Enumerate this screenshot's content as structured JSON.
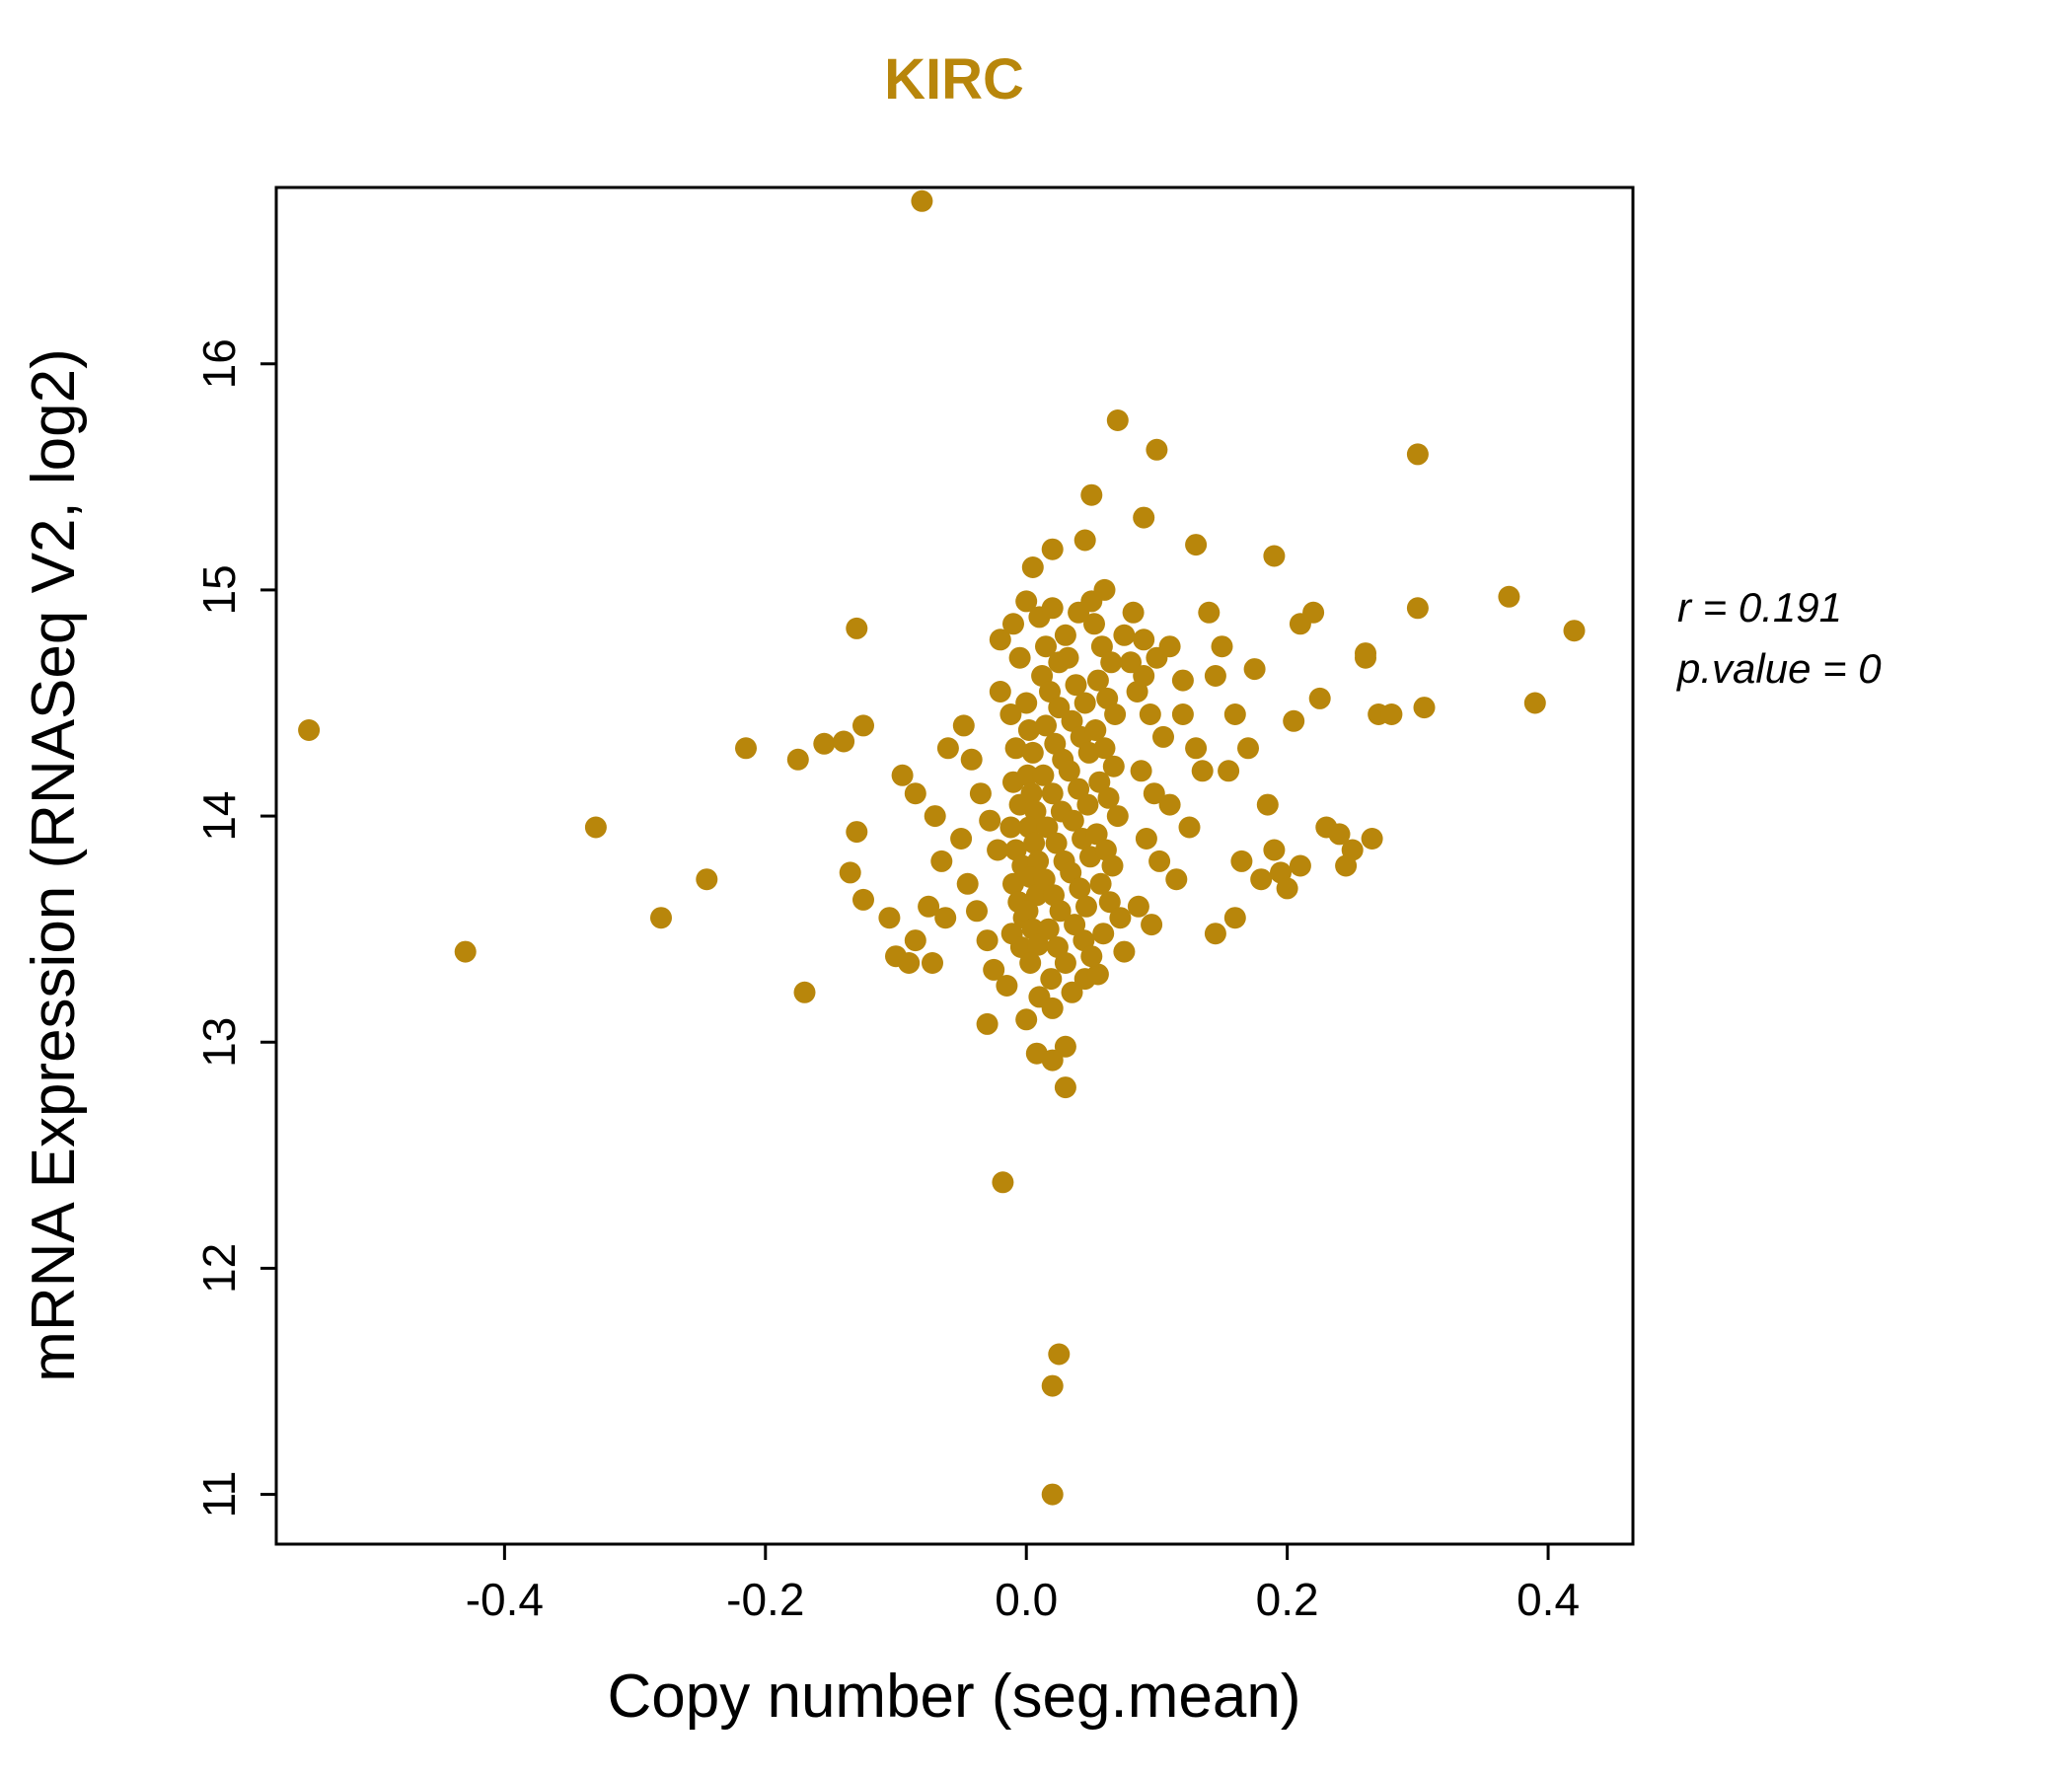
{
  "title": "KIRC",
  "annotation": {
    "line1": "r = 0.191",
    "line2": "p.value = 0"
  },
  "chart_data": {
    "type": "scatter",
    "title": "KIRC",
    "xlabel": "Copy number (seg.mean)",
    "ylabel": "mRNA Expression (RNASeq V2, log2)",
    "xlim": [
      -0.575,
      0.465
    ],
    "ylim": [
      10.78,
      16.78
    ],
    "xticks": [
      -0.4,
      -0.2,
      0.0,
      0.2,
      0.4
    ],
    "yticks": [
      11,
      12,
      13,
      14,
      15,
      16
    ],
    "grid": false,
    "legend": "none",
    "point_color": "#B8860B",
    "title_color": "#B8860B",
    "stats": {
      "r": 0.191,
      "p_value": 0
    },
    "points": [
      [
        -0.08,
        16.72
      ],
      [
        0.07,
        15.75
      ],
      [
        0.1,
        15.62
      ],
      [
        0.3,
        15.6
      ],
      [
        0.05,
        15.42
      ],
      [
        0.09,
        15.32
      ],
      [
        0.045,
        15.22
      ],
      [
        0.13,
        15.2
      ],
      [
        0.19,
        15.15
      ],
      [
        -0.55,
        14.38
      ],
      [
        -0.43,
        13.4
      ],
      [
        -0.33,
        13.95
      ],
      [
        -0.28,
        13.55
      ],
      [
        -0.245,
        13.72
      ],
      [
        -0.215,
        14.3
      ],
      [
        -0.175,
        14.25
      ],
      [
        -0.155,
        14.32
      ],
      [
        -0.17,
        13.22
      ],
      [
        -0.13,
        14.83
      ],
      [
        -0.125,
        14.4
      ],
      [
        -0.14,
        14.33
      ],
      [
        -0.13,
        13.93
      ],
      [
        -0.135,
        13.75
      ],
      [
        -0.125,
        13.63
      ],
      [
        -0.105,
        13.55
      ],
      [
        -0.1,
        13.38
      ],
      [
        -0.09,
        13.35
      ],
      [
        -0.095,
        14.18
      ],
      [
        -0.085,
        14.1
      ],
      [
        0.42,
        14.82
      ],
      [
        0.37,
        14.97
      ],
      [
        0.39,
        14.5
      ],
      [
        0.3,
        14.92
      ],
      [
        0.26,
        14.72
      ],
      [
        0.27,
        14.45
      ],
      [
        0.305,
        14.48
      ],
      [
        0.22,
        14.9
      ],
      [
        0.21,
        14.85
      ],
      [
        0.205,
        14.42
      ],
      [
        0.225,
        14.52
      ],
      [
        0.175,
        14.65
      ],
      [
        0.02,
        11.0
      ],
      [
        0.02,
        11.48
      ],
      [
        0.025,
        11.62
      ],
      [
        -0.018,
        12.38
      ],
      [
        0.02,
        12.92
      ],
      [
        0.03,
        12.8
      ],
      [
        0.008,
        12.95
      ],
      [
        0.24,
        13.92
      ],
      [
        0.25,
        13.85
      ],
      [
        0.265,
        13.9
      ],
      [
        0.245,
        13.78
      ],
      [
        0.26,
        14.7
      ],
      [
        0.28,
        14.45
      ],
      [
        0.165,
        13.8
      ],
      [
        0.18,
        13.72
      ],
      [
        0.195,
        13.75
      ],
      [
        0.23,
        13.95
      ],
      [
        0.14,
        14.9
      ],
      [
        0.15,
        14.75
      ],
      [
        0.145,
        14.62
      ],
      [
        0.16,
        14.45
      ],
      [
        0.17,
        14.3
      ],
      [
        0.155,
        14.2
      ],
      [
        0.185,
        14.05
      ],
      [
        0.19,
        13.85
      ],
      [
        0.2,
        13.68
      ],
      [
        0.21,
        13.78
      ],
      [
        0.16,
        13.55
      ],
      [
        0.145,
        13.48
      ],
      [
        0.12,
        14.45
      ],
      [
        0.13,
        14.3
      ],
      [
        0.125,
        13.95
      ],
      [
        0.135,
        14.2
      ],
      [
        0.082,
        14.9
      ],
      [
        0.09,
        14.78
      ],
      [
        0.1,
        14.7
      ],
      [
        0.085,
        14.55
      ],
      [
        0.095,
        14.45
      ],
      [
        0.105,
        14.35
      ],
      [
        0.088,
        14.2
      ],
      [
        0.098,
        14.1
      ],
      [
        0.11,
        14.05
      ],
      [
        0.092,
        13.9
      ],
      [
        0.102,
        13.8
      ],
      [
        0.115,
        13.72
      ],
      [
        0.086,
        13.6
      ],
      [
        0.096,
        13.52
      ],
      [
        0.075,
        14.8
      ],
      [
        0.08,
        14.68
      ],
      [
        0.09,
        14.62
      ],
      [
        0.11,
        14.75
      ],
      [
        0.12,
        14.6
      ],
      [
        0.0,
        14.95
      ],
      [
        0.01,
        14.88
      ],
      [
        0.02,
        14.92
      ],
      [
        0.03,
        14.8
      ],
      [
        0.04,
        14.9
      ],
      [
        0.015,
        14.75
      ],
      [
        -0.005,
        14.7
      ],
      [
        0.025,
        14.68
      ],
      [
        0.05,
        14.95
      ],
      [
        0.06,
        15.0
      ],
      [
        0.005,
        15.1
      ],
      [
        0.02,
        15.18
      ],
      [
        -0.01,
        14.85
      ],
      [
        -0.02,
        14.78
      ],
      [
        -0.048,
        14.4
      ],
      [
        -0.042,
        14.25
      ],
      [
        -0.035,
        14.1
      ],
      [
        -0.028,
        13.98
      ],
      [
        -0.022,
        13.85
      ],
      [
        -0.045,
        13.7
      ],
      [
        -0.038,
        13.58
      ],
      [
        -0.03,
        13.45
      ],
      [
        -0.025,
        13.32
      ],
      [
        -0.02,
        14.55
      ],
      [
        -0.05,
        13.9
      ],
      [
        -0.06,
        14.3
      ],
      [
        -0.07,
        14.0
      ],
      [
        -0.065,
        13.8
      ],
      [
        -0.075,
        13.6
      ],
      [
        -0.085,
        13.45
      ],
      [
        -0.062,
        13.55
      ],
      [
        -0.072,
        13.35
      ],
      [
        0.01,
        13.2
      ],
      [
        0.02,
        13.15
      ],
      [
        0.035,
        13.22
      ],
      [
        0.045,
        13.28
      ],
      [
        0.055,
        13.3
      ],
      [
        -0.015,
        13.25
      ],
      [
        0.0,
        13.1
      ],
      [
        0.03,
        12.98
      ],
      [
        -0.03,
        13.08
      ],
      [
        -0.012,
        14.45
      ],
      [
        -0.008,
        14.3
      ],
      [
        -0.01,
        14.15
      ],
      [
        -0.005,
        14.05
      ],
      [
        -0.012,
        13.95
      ],
      [
        -0.008,
        13.85
      ],
      [
        -0.003,
        13.78
      ],
      [
        -0.01,
        13.7
      ],
      [
        -0.006,
        13.62
      ],
      [
        -0.002,
        13.55
      ],
      [
        -0.011,
        13.48
      ],
      [
        -0.004,
        13.42
      ],
      [
        0.0,
        14.5
      ],
      [
        0.002,
        14.38
      ],
      [
        0.005,
        14.28
      ],
      [
        0.001,
        14.18
      ],
      [
        0.004,
        14.1
      ],
      [
        0.007,
        14.02
      ],
      [
        0.002,
        13.95
      ],
      [
        0.006,
        13.88
      ],
      [
        0.009,
        13.8
      ],
      [
        0.003,
        13.73
      ],
      [
        0.008,
        13.65
      ],
      [
        0.001,
        13.58
      ],
      [
        0.005,
        13.5
      ],
      [
        0.009,
        13.43
      ],
      [
        0.003,
        13.35
      ],
      [
        0.012,
        14.62
      ],
      [
        0.018,
        14.55
      ],
      [
        0.025,
        14.48
      ],
      [
        0.015,
        14.4
      ],
      [
        0.022,
        14.32
      ],
      [
        0.028,
        14.25
      ],
      [
        0.013,
        14.18
      ],
      [
        0.02,
        14.1
      ],
      [
        0.027,
        14.02
      ],
      [
        0.016,
        13.95
      ],
      [
        0.023,
        13.88
      ],
      [
        0.029,
        13.8
      ],
      [
        0.014,
        13.72
      ],
      [
        0.021,
        13.65
      ],
      [
        0.026,
        13.58
      ],
      [
        0.017,
        13.5
      ],
      [
        0.024,
        13.42
      ],
      [
        0.03,
        13.35
      ],
      [
        0.019,
        13.28
      ],
      [
        0.032,
        14.7
      ],
      [
        0.038,
        14.58
      ],
      [
        0.045,
        14.5
      ],
      [
        0.035,
        14.42
      ],
      [
        0.042,
        14.35
      ],
      [
        0.048,
        14.28
      ],
      [
        0.033,
        14.2
      ],
      [
        0.04,
        14.12
      ],
      [
        0.047,
        14.05
      ],
      [
        0.036,
        13.98
      ],
      [
        0.043,
        13.9
      ],
      [
        0.049,
        13.82
      ],
      [
        0.034,
        13.75
      ],
      [
        0.041,
        13.68
      ],
      [
        0.046,
        13.6
      ],
      [
        0.037,
        13.52
      ],
      [
        0.044,
        13.45
      ],
      [
        0.05,
        13.38
      ],
      [
        0.052,
        14.85
      ],
      [
        0.058,
        14.75
      ],
      [
        0.065,
        14.68
      ],
      [
        0.055,
        14.6
      ],
      [
        0.062,
        14.52
      ],
      [
        0.068,
        14.45
      ],
      [
        0.053,
        14.38
      ],
      [
        0.06,
        14.3
      ],
      [
        0.067,
        14.22
      ],
      [
        0.056,
        14.15
      ],
      [
        0.063,
        14.08
      ],
      [
        0.07,
        14.0
      ],
      [
        0.054,
        13.92
      ],
      [
        0.061,
        13.85
      ],
      [
        0.066,
        13.78
      ],
      [
        0.057,
        13.7
      ],
      [
        0.064,
        13.62
      ],
      [
        0.072,
        13.55
      ],
      [
        0.059,
        13.48
      ],
      [
        0.075,
        13.4
      ]
    ]
  }
}
